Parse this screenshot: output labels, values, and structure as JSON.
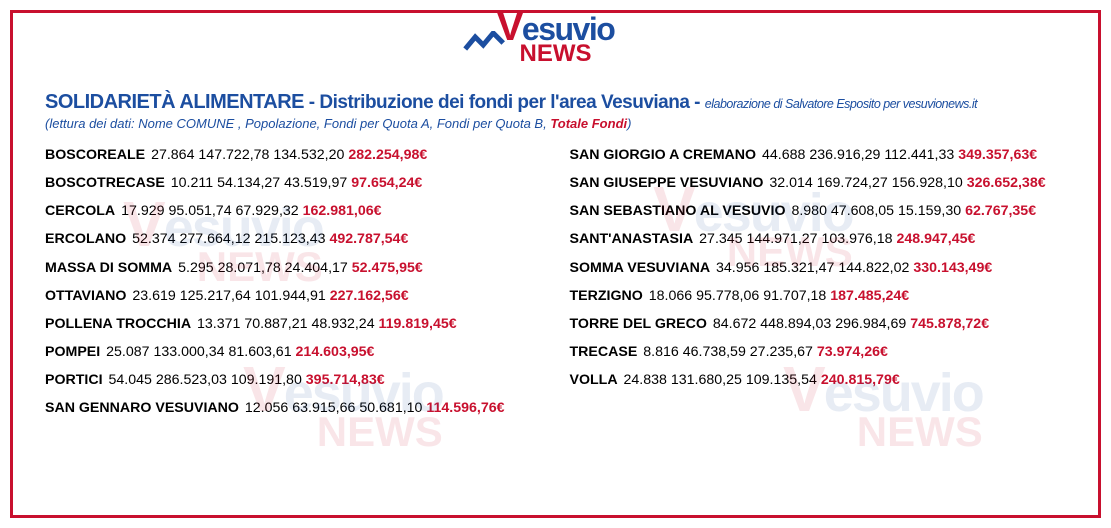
{
  "brand": {
    "top_v": "V",
    "top_rest": "esuvio",
    "bottom": "NEWS",
    "zig_color": "#1c4ea0"
  },
  "header": {
    "title_bold": "SOLIDARIETÀ ALIMENTARE",
    "title_rest": " - Distribuzione dei fondi per l'area Vesuviana - ",
    "credits": "elaborazione di Salvatore Esposito per vesuvionews.it",
    "legend_prefix": "(lettura dei dati: Nome COMUNE , Popolazione, Fondi per Quota A, Fondi per Quota B, ",
    "legend_red": "Totale Fondi",
    "legend_suffix": ")"
  },
  "colors": {
    "blue": "#1c4ea0",
    "red": "#c8102e",
    "border": "#c8102e",
    "text": "#000000",
    "bg": "#ffffff"
  },
  "left": [
    {
      "comune": "BOSCOREALE",
      "pop": "27.864",
      "a": "147.722,78",
      "b": "134.532,20",
      "tot": "282.254,98€"
    },
    {
      "comune": "BOSCOTRECASE",
      "pop": "10.211",
      "a": "54.134,27",
      "b": "43.519,97",
      "tot": "97.654,24€"
    },
    {
      "comune": "CERCOLA",
      "pop": "17.929",
      "a": "95.051,74",
      "b": "67.929,32",
      "tot": "162.981,06€"
    },
    {
      "comune": "ERCOLANO",
      "pop": "52.374",
      "a": "277.664,12",
      "b": "215.123,43",
      "tot": "492.787,54€"
    },
    {
      "comune": "MASSA DI SOMMA",
      "pop": "5.295",
      "a": "28.071,78",
      "b": "24.404,17",
      "tot": "52.475,95€"
    },
    {
      "comune": "OTTAVIANO",
      "pop": "23.619",
      "a": "125.217,64",
      "b": "101.944,91",
      "tot": "227.162,56€"
    },
    {
      "comune": "POLLENA TROCCHIA",
      "pop": "13.371",
      "a": "70.887,21",
      "b": "48.932,24",
      "tot": "119.819,45€"
    },
    {
      "comune": "POMPEI",
      "pop": "25.087",
      "a": "133.000,34",
      "b": "81.603,61",
      "tot": "214.603,95€"
    },
    {
      "comune": "PORTICI",
      "pop": "54.045",
      "a": "286.523,03",
      "b": "109.191,80",
      "tot": "395.714,83€"
    },
    {
      "comune": "SAN GENNARO VESUVIANO",
      "pop": "12.056",
      "a": "63.915,66",
      "b": "50.681,10",
      "tot": "114.596,76€"
    }
  ],
  "right": [
    {
      "comune": "SAN GIORGIO A CREMANO",
      "pop": "44.688",
      "a": "236.916,29",
      "b": "112.441,33",
      "tot": "349.357,63€"
    },
    {
      "comune": "SAN GIUSEPPE VESUVIANO",
      "pop": "32.014",
      "a": "169.724,27",
      "b": "156.928,10",
      "tot": "326.652,38€"
    },
    {
      "comune": "SAN SEBASTIANO AL VESUVIO",
      "pop": "8.980",
      "a": "47.608,05",
      "b": "15.159,30",
      "tot": "62.767,35€"
    },
    {
      "comune": "SANT'ANASTASIA",
      "pop": "27.345",
      "a": "144.971,27",
      "b": "103.976,18",
      "tot": "248.947,45€"
    },
    {
      "comune": "SOMMA VESUVIANA",
      "pop": "34.956",
      "a": "185.321,47",
      "b": "144.822,02",
      "tot": "330.143,49€"
    },
    {
      "comune": "TERZIGNO",
      "pop": "18.066",
      "a": "95.778,06",
      "b": "91.707,18",
      "tot": "187.485,24€"
    },
    {
      "comune": "TORRE DEL GRECO",
      "pop": "84.672",
      "a": "448.894,03",
      "b": "296.984,69",
      "tot": "745.878,72€"
    },
    {
      "comune": "TRECASE",
      "pop": "8.816",
      "a": "46.738,59",
      "b": "27.235,67",
      "tot": "73.974,26€"
    },
    {
      "comune": "VOLLA",
      "pop": "24.838",
      "a": "131.680,25",
      "b": "109.135,54",
      "tot": "240.815,79€"
    }
  ]
}
